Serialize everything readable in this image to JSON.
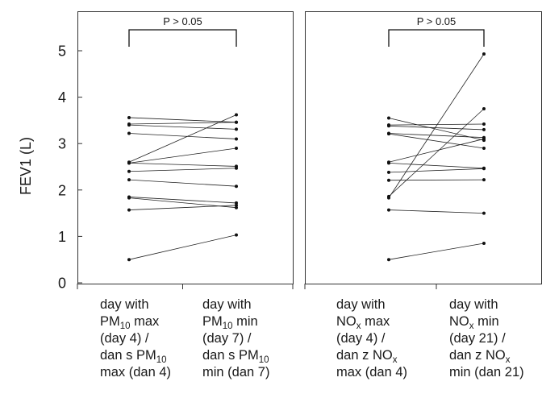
{
  "chart_data": {
    "type": "paired-line",
    "ylabel": "FEV1 (L)",
    "ylim": [
      0,
      5.9
    ],
    "yticks": [
      "0",
      "1",
      "2",
      "3",
      "4",
      "5"
    ],
    "panels": [
      {
        "annotation": "P > 0.05",
        "categories": [
          {
            "lines": [
              {
                "text": "day with"
              },
              {
                "text": "PM",
                "sub": "10",
                "tail": " max"
              },
              {
                "text": "(day 4) /"
              },
              {
                "text": "dan s PM",
                "sub": "10"
              },
              {
                "text": "max (dan 4)"
              }
            ]
          },
          {
            "lines": [
              {
                "text": "day with"
              },
              {
                "text": "PM",
                "sub": "10",
                "tail": " min"
              },
              {
                "text": "(day 7) /"
              },
              {
                "text": "dan s PM",
                "sub": "10"
              },
              {
                "text": "min (dan 7)"
              }
            ]
          }
        ],
        "pairs": [
          [
            3.56,
            3.46
          ],
          [
            3.42,
            3.46
          ],
          [
            3.4,
            3.31
          ],
          [
            3.22,
            3.1
          ],
          [
            2.6,
            3.62
          ],
          [
            2.58,
            2.9
          ],
          [
            2.58,
            2.51
          ],
          [
            2.4,
            2.47
          ],
          [
            2.22,
            2.08
          ],
          [
            1.85,
            1.72
          ],
          [
            1.83,
            1.62
          ],
          [
            1.57,
            1.67
          ],
          [
            0.5,
            1.03
          ]
        ]
      },
      {
        "annotation": "P > 0.05",
        "categories": [
          {
            "lines": [
              {
                "text": "day with"
              },
              {
                "text": "NO",
                "sub": "x",
                "tail": " max"
              },
              {
                "text": "(day 4) /"
              },
              {
                "text": "dan z NO",
                "sub": "x"
              },
              {
                "text": "max (dan 4)"
              }
            ]
          },
          {
            "lines": [
              {
                "text": "day with"
              },
              {
                "text": "NO",
                "sub": "x",
                "tail": " min"
              },
              {
                "text": "(day 21) /"
              },
              {
                "text": "dan z NO",
                "sub": "x"
              },
              {
                "text": "min (dan 21)"
              }
            ]
          }
        ],
        "pairs": [
          [
            3.55,
            3.07
          ],
          [
            3.4,
            3.42
          ],
          [
            3.38,
            3.3
          ],
          [
            3.22,
            3.13
          ],
          [
            3.21,
            2.9
          ],
          [
            2.6,
            3.1
          ],
          [
            2.58,
            2.47
          ],
          [
            2.38,
            2.46
          ],
          [
            2.21,
            2.22
          ],
          [
            1.86,
            3.75
          ],
          [
            1.83,
            4.93
          ],
          [
            1.57,
            1.5
          ],
          [
            0.5,
            0.85
          ]
        ]
      }
    ]
  }
}
